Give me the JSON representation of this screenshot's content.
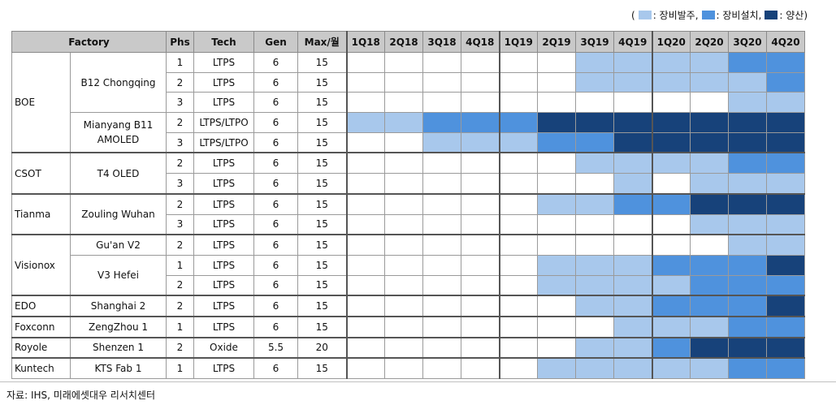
{
  "legend": {
    "open": "(",
    "order_label": ": 장비발주,",
    "install_label": ": 장비설치,",
    "mass_label": ": 양산)",
    "colors": {
      "none": "#ffffff",
      "order": "#a8c8ec",
      "install": "#4f92dd",
      "mass": "#17427a"
    }
  },
  "headers": {
    "factory": "Factory",
    "phs": "Phs",
    "tech": "Tech",
    "gen": "Gen",
    "max": "Max/월",
    "quarters": [
      "1Q18",
      "2Q18",
      "3Q18",
      "4Q18",
      "1Q19",
      "2Q19",
      "3Q19",
      "4Q19",
      "1Q20",
      "2Q20",
      "3Q20",
      "4Q20"
    ]
  },
  "rows": [
    {
      "company": "BOE",
      "factory": "B12 Chongqing",
      "phs": "1",
      "tech": "LTPS",
      "gen": "6",
      "max": "15",
      "cells": [
        0,
        0,
        0,
        0,
        0,
        0,
        1,
        1,
        1,
        1,
        2,
        2
      ]
    },
    {
      "company": "BOE",
      "factory": "B12 Chongqing",
      "phs": "2",
      "tech": "LTPS",
      "gen": "6",
      "max": "15",
      "cells": [
        0,
        0,
        0,
        0,
        0,
        0,
        1,
        1,
        1,
        1,
        1,
        2
      ]
    },
    {
      "company": "BOE",
      "factory": "B12 Chongqing",
      "phs": "3",
      "tech": "LTPS",
      "gen": "6",
      "max": "15",
      "cells": [
        0,
        0,
        0,
        0,
        0,
        0,
        0,
        0,
        0,
        0,
        1,
        1
      ]
    },
    {
      "company": "BOE",
      "factory": "Mianyang B11\nAMOLED",
      "phs": "2",
      "tech": "LTPS/LTPO",
      "gen": "6",
      "max": "15",
      "cells": [
        1,
        1,
        2,
        2,
        2,
        3,
        3,
        3,
        3,
        3,
        3,
        3
      ]
    },
    {
      "company": "BOE",
      "factory": "Mianyang B11\nAMOLED",
      "phs": "3",
      "tech": "LTPS/LTPO",
      "gen": "6",
      "max": "15",
      "cells": [
        0,
        0,
        1,
        1,
        1,
        2,
        2,
        3,
        3,
        3,
        3,
        3
      ]
    },
    {
      "company": "CSOT",
      "factory": "T4 OLED",
      "phs": "2",
      "tech": "LTPS",
      "gen": "6",
      "max": "15",
      "cells": [
        0,
        0,
        0,
        0,
        0,
        0,
        1,
        1,
        1,
        1,
        2,
        2
      ]
    },
    {
      "company": "CSOT",
      "factory": "T4 OLED",
      "phs": "3",
      "tech": "LTPS",
      "gen": "6",
      "max": "15",
      "cells": [
        0,
        0,
        0,
        0,
        0,
        0,
        0,
        1,
        0,
        1,
        1,
        1
      ]
    },
    {
      "company": "Tianma",
      "factory": "Zouling Wuhan",
      "phs": "2",
      "tech": "LTPS",
      "gen": "6",
      "max": "15",
      "cells": [
        0,
        0,
        0,
        0,
        0,
        1,
        1,
        2,
        2,
        3,
        3,
        3
      ]
    },
    {
      "company": "Tianma",
      "factory": "Zouling Wuhan",
      "phs": "3",
      "tech": "LTPS",
      "gen": "6",
      "max": "15",
      "cells": [
        0,
        0,
        0,
        0,
        0,
        0,
        0,
        0,
        0,
        1,
        1,
        1
      ]
    },
    {
      "company": "Visionox",
      "factory": "Gu'an V2",
      "phs": "2",
      "tech": "LTPS",
      "gen": "6",
      "max": "15",
      "cells": [
        0,
        0,
        0,
        0,
        0,
        0,
        0,
        0,
        0,
        0,
        1,
        1
      ]
    },
    {
      "company": "Visionox",
      "factory": "V3 Hefei",
      "phs": "1",
      "tech": "LTPS",
      "gen": "6",
      "max": "15",
      "cells": [
        0,
        0,
        0,
        0,
        0,
        1,
        1,
        1,
        2,
        2,
        2,
        3
      ]
    },
    {
      "company": "Visionox",
      "factory": "V3 Hefei",
      "phs": "2",
      "tech": "LTPS",
      "gen": "6",
      "max": "15",
      "cells": [
        0,
        0,
        0,
        0,
        0,
        1,
        1,
        1,
        1,
        2,
        2,
        2
      ]
    },
    {
      "company": "EDO",
      "factory": "Shanghai 2",
      "phs": "2",
      "tech": "LTPS",
      "gen": "6",
      "max": "15",
      "cells": [
        0,
        0,
        0,
        0,
        0,
        0,
        1,
        1,
        2,
        2,
        2,
        3
      ]
    },
    {
      "company": "Foxconn",
      "factory": "ZengZhou 1",
      "phs": "1",
      "tech": "LTPS",
      "gen": "6",
      "max": "15",
      "cells": [
        0,
        0,
        0,
        0,
        0,
        0,
        0,
        1,
        1,
        1,
        2,
        2
      ]
    },
    {
      "company": "Royole",
      "factory": "Shenzen 1",
      "phs": "2",
      "tech": "Oxide",
      "gen": "5.5",
      "max": "20",
      "cells": [
        0,
        0,
        0,
        0,
        0,
        0,
        1,
        1,
        2,
        3,
        3,
        3
      ]
    },
    {
      "company": "Kuntech",
      "factory": "KTS Fab 1",
      "phs": "1",
      "tech": "LTPS",
      "gen": "6",
      "max": "15",
      "cells": [
        0,
        0,
        0,
        0,
        0,
        1,
        1,
        1,
        1,
        1,
        2,
        2
      ]
    }
  ],
  "source": "자료: IHS, 미래에셋대우 리서치센터"
}
